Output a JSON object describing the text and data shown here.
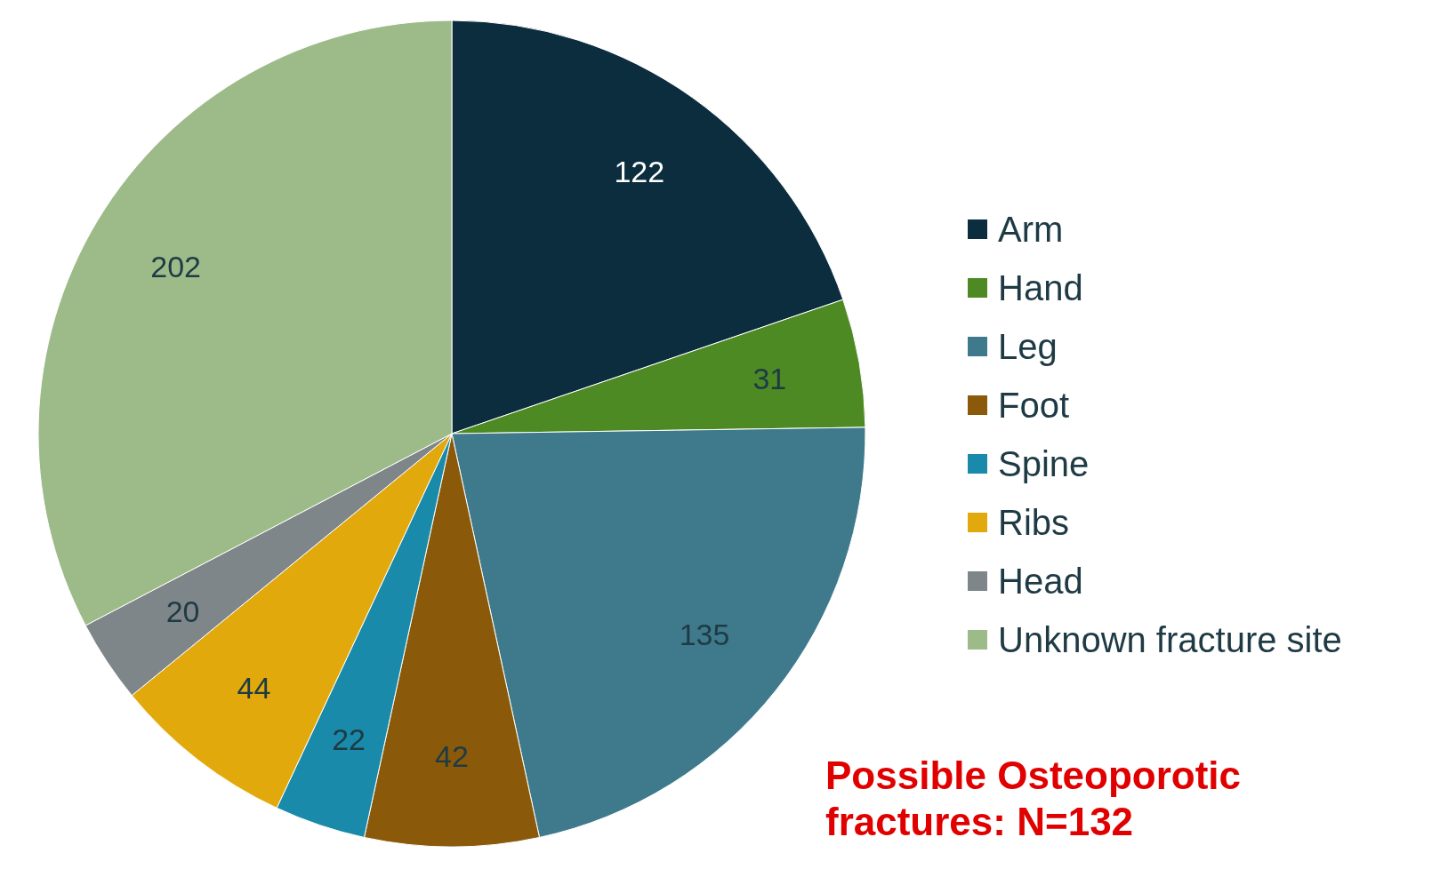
{
  "chart_data": {
    "type": "pie",
    "categories": [
      "Arm",
      "Hand",
      "Leg",
      "Foot",
      "Spine",
      "Ribs",
      "Head",
      "Unknown fracture site"
    ],
    "values": [
      122,
      31,
      135,
      42,
      22,
      44,
      20,
      202
    ],
    "colors": [
      "#0c2d3e",
      "#4e8a23",
      "#3f7a8c",
      "#8a5a0a",
      "#1a8aaa",
      "#e2a90c",
      "#7f868a",
      "#9cbb88"
    ],
    "data_labels": true,
    "legend": "right",
    "annotations": [
      "Possible Osteoporotic fractures: N=132"
    ]
  }
}
